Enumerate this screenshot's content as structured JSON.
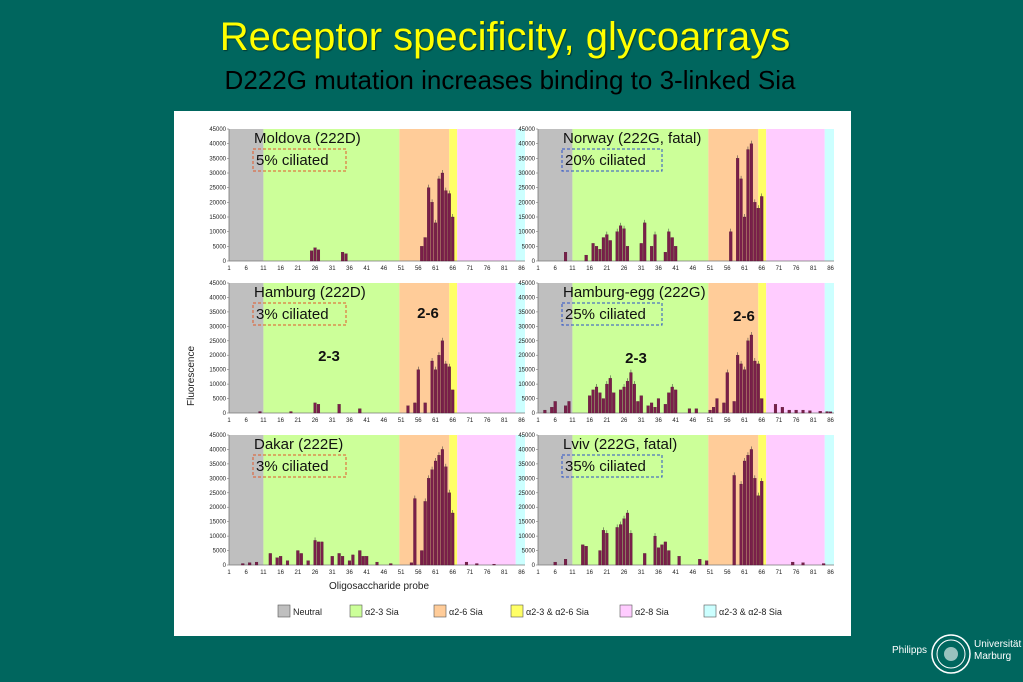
{
  "slide": {
    "title": "Receptor specificity, glycoarrays",
    "subtitle": "D222G mutation increases binding to 3-linked Sia"
  },
  "logo": {
    "left_text": "Philipps",
    "right_text_1": "Universität",
    "right_text_2": "Marburg"
  },
  "figure": {
    "ylabel": "Fluorescence",
    "xlabel": "Oligosaccharide probe",
    "y_ticks": [
      "45000",
      "40000",
      "35000",
      "30000",
      "25000",
      "20000",
      "15000",
      "10000",
      "5000",
      "0"
    ],
    "x_ticks": [
      "1",
      "6",
      "11",
      "16",
      "21",
      "26",
      "31",
      "36",
      "41",
      "46",
      "51",
      "56",
      "61",
      "66",
      "71",
      "76",
      "81",
      "86"
    ],
    "region_annotations": {
      "left": "2-3",
      "right": "2-6"
    },
    "legend": [
      {
        "label": "Neutral",
        "color": "#bfbfbf"
      },
      {
        "label": "α2-3 Sia",
        "color": "#ccff99"
      },
      {
        "label": "α2-6 Sia",
        "color": "#ffcc99"
      },
      {
        "label": "α2-3 & α2-6 Sia",
        "color": "#ffff66"
      },
      {
        "label": "α2-8 Sia",
        "color": "#ffccff"
      },
      {
        "label": "α2-3 & α2-8 Sia",
        "color": "#ccffff"
      }
    ]
  },
  "chart_data": [
    {
      "type": "bar",
      "panel": "Moldova",
      "title": "Moldova (222D)",
      "tag": "5% ciliated",
      "ylim": [
        0,
        45000
      ],
      "x": [
        25,
        26,
        27,
        34,
        35,
        57,
        58,
        59,
        60,
        61,
        62,
        63,
        64,
        65,
        66
      ],
      "values": [
        3500,
        4500,
        3800,
        3000,
        2500,
        5000,
        8000,
        25000,
        20000,
        13000,
        28000,
        30000,
        24000,
        23000,
        15000
      ]
    },
    {
      "type": "bar",
      "panel": "Norway",
      "title": "Norway (222G, fatal)",
      "tag": "20% ciliated",
      "ylim": [
        0,
        45000
      ],
      "x": [
        9,
        15,
        17,
        18,
        19,
        20,
        21,
        22,
        24,
        25,
        26,
        27,
        31,
        32,
        34,
        35,
        38,
        39,
        40,
        41,
        57,
        59,
        60,
        61,
        62,
        63,
        64,
        65,
        66
      ],
      "values": [
        3000,
        2000,
        6000,
        5000,
        4000,
        8000,
        9000,
        7000,
        10000,
        12000,
        11000,
        5000,
        6000,
        13000,
        5000,
        9000,
        3000,
        10000,
        8000,
        5000,
        10000,
        35000,
        28000,
        15000,
        38000,
        40000,
        20000,
        18000,
        22000
      ]
    },
    {
      "type": "bar",
      "panel": "Hamburg",
      "title": "Hamburg (222D)",
      "tag": "3% ciliated",
      "ylim": [
        0,
        45000
      ],
      "x": [
        10,
        19,
        26,
        27,
        33,
        39,
        53,
        55,
        56,
        58,
        60,
        61,
        62,
        63,
        64,
        65,
        66
      ],
      "values": [
        500,
        500,
        3500,
        3000,
        3000,
        1500,
        2500,
        3500,
        15000,
        3500,
        18000,
        15000,
        20000,
        25000,
        17000,
        16000,
        8000
      ]
    },
    {
      "type": "bar",
      "panel": "Hamburg-egg",
      "title": "Hamburg-egg (222G)",
      "tag": "25% ciliated",
      "ylim": [
        0,
        45000
      ],
      "x": [
        3,
        5,
        6,
        9,
        10,
        16,
        17,
        18,
        19,
        20,
        21,
        22,
        23,
        25,
        26,
        27,
        28,
        29,
        30,
        31,
        33,
        34,
        35,
        36,
        38,
        39,
        40,
        41,
        45,
        47,
        51,
        52,
        53,
        55,
        56,
        58,
        59,
        60,
        61,
        62,
        63,
        64,
        65,
        66,
        70,
        72,
        74,
        76,
        78,
        80,
        83,
        85,
        86
      ],
      "values": [
        1000,
        2000,
        4000,
        2500,
        4000,
        6000,
        8000,
        9000,
        7000,
        5000,
        10000,
        12000,
        7000,
        8000,
        9000,
        11000,
        14000,
        10000,
        4000,
        6000,
        2500,
        3500,
        2000,
        5000,
        3000,
        7000,
        9000,
        8000,
        1500,
        1500,
        1000,
        2000,
        5000,
        3500,
        14000,
        4000,
        20000,
        17000,
        15000,
        25000,
        27000,
        18000,
        17000,
        5000,
        3000,
        2000,
        1000,
        1000,
        1000,
        800,
        600,
        500,
        400
      ]
    },
    {
      "type": "bar",
      "panel": "Dakar",
      "title": "Dakar (222E)",
      "tag": "3% ciliated",
      "ylim": [
        0,
        45000
      ],
      "x": [
        5,
        7,
        9,
        13,
        15,
        16,
        18,
        21,
        22,
        24,
        26,
        27,
        28,
        31,
        33,
        34,
        36,
        37,
        39,
        40,
        41,
        44,
        48,
        54,
        55,
        57,
        58,
        59,
        60,
        61,
        62,
        63,
        64,
        65,
        66,
        70,
        73,
        78
      ],
      "values": [
        500,
        800,
        1000,
        4000,
        2500,
        3000,
        1500,
        5000,
        4000,
        1500,
        8500,
        8000,
        8000,
        3000,
        4000,
        3000,
        1500,
        3500,
        5000,
        3000,
        3000,
        1000,
        500,
        800,
        23000,
        5000,
        22000,
        30000,
        33000,
        36000,
        38000,
        40000,
        34000,
        25000,
        18000,
        1000,
        500,
        300
      ]
    },
    {
      "type": "bar",
      "panel": "Lviv",
      "title": "Lviv (222G, fatal)",
      "tag": "35% ciliated",
      "ylim": [
        0,
        45000
      ],
      "x": [
        6,
        9,
        14,
        15,
        19,
        20,
        21,
        24,
        25,
        26,
        27,
        28,
        32,
        35,
        36,
        37,
        38,
        39,
        42,
        48,
        50,
        58,
        60,
        61,
        62,
        63,
        64,
        65,
        66,
        75,
        78,
        84
      ],
      "values": [
        1000,
        2000,
        7000,
        6500,
        5000,
        12000,
        11000,
        13000,
        14000,
        16000,
        18000,
        11000,
        4000,
        10000,
        6000,
        7000,
        8000,
        5000,
        3000,
        2000,
        1500,
        31000,
        28000,
        36000,
        38000,
        40000,
        30000,
        24000,
        29000,
        1000,
        800,
        500
      ]
    }
  ]
}
